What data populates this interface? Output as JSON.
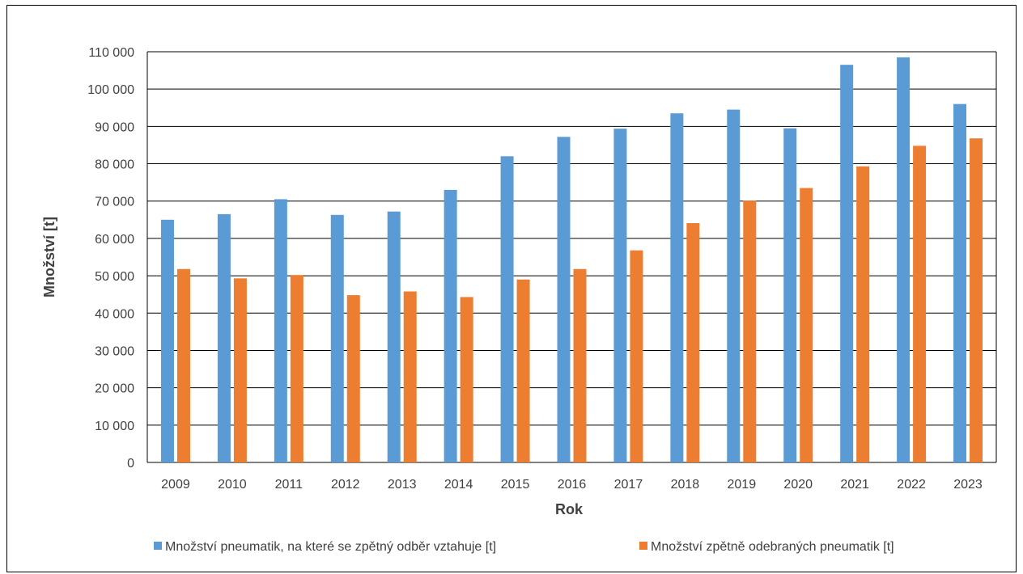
{
  "chart_data": {
    "type": "bar",
    "categories": [
      "2009",
      "2010",
      "2011",
      "2012",
      "2013",
      "2014",
      "2015",
      "2016",
      "2017",
      "2018",
      "2019",
      "2020",
      "2021",
      "2022",
      "2023"
    ],
    "series": [
      {
        "name": "Množství pneumatik, na které se zpětný odběr vztahuje [t]",
        "color": "#5B9BD5",
        "values": [
          65000,
          66500,
          70500,
          66300,
          67200,
          73000,
          82000,
          87200,
          89400,
          93500,
          94500,
          89500,
          106500,
          108500,
          96000
        ]
      },
      {
        "name": "Množství zpětně odebraných pneumatik [t]",
        "color": "#ED7D31",
        "values": [
          51800,
          49300,
          50200,
          44800,
          45800,
          44300,
          49000,
          51800,
          56800,
          64100,
          70100,
          73500,
          79300,
          84800,
          86800
        ]
      }
    ],
    "xlabel": "Rok",
    "ylabel": "Množství [t]",
    "ylim": [
      0,
      110000
    ],
    "yticks": [
      0,
      10000,
      20000,
      30000,
      40000,
      50000,
      60000,
      70000,
      80000,
      90000,
      100000,
      110000
    ],
    "ytick_labels": [
      "0",
      "10 000",
      "20 000",
      "30 000",
      "40 000",
      "50 000",
      "60 000",
      "70 000",
      "80 000",
      "90 000",
      "100 000",
      "110 000"
    ],
    "grid": true,
    "legend_position": "bottom"
  }
}
